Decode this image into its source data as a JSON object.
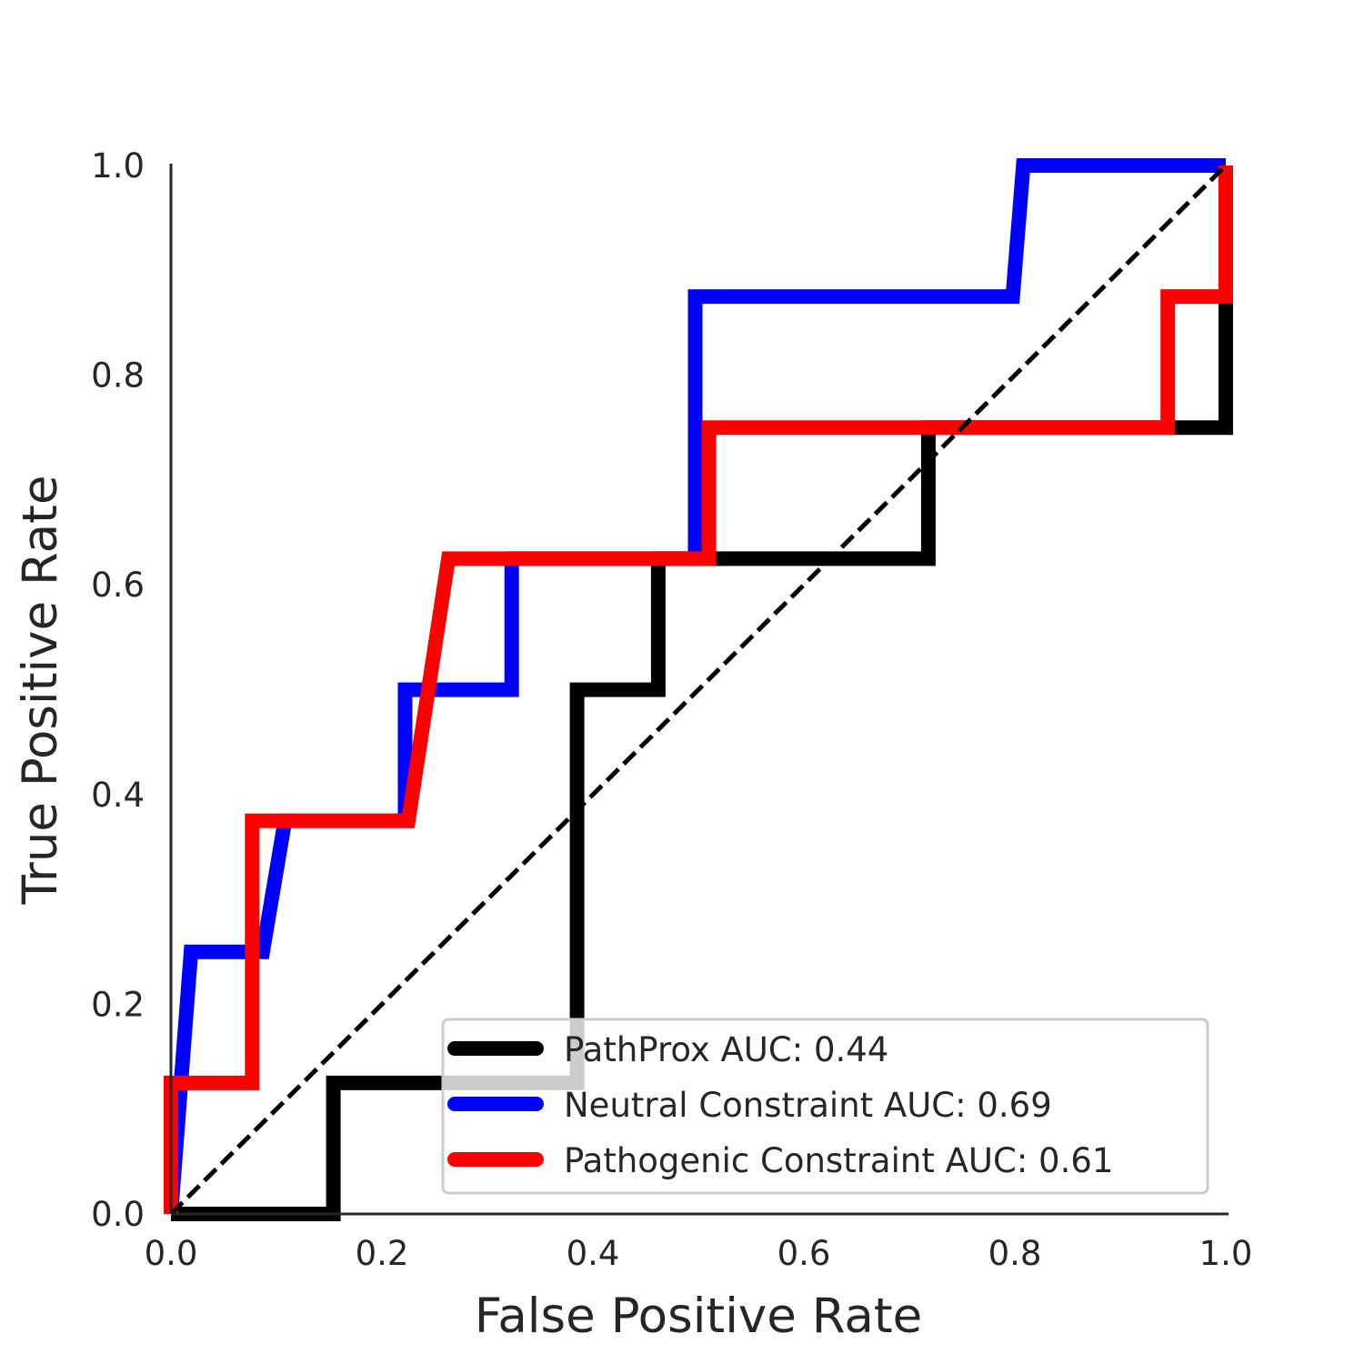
{
  "chart_data": {
    "type": "line",
    "title": "",
    "xlabel": "False Positive Rate",
    "ylabel": "True Positive Rate",
    "xlim": [
      0.0,
      1.0
    ],
    "ylim": [
      0.0,
      1.0
    ],
    "xticks": [
      "0.0",
      "0.2",
      "0.4",
      "0.6",
      "0.8",
      "1.0"
    ],
    "yticks": [
      "0.0",
      "0.2",
      "0.4",
      "0.6",
      "0.8",
      "1.0"
    ],
    "grid": false,
    "legend_position": "lower right",
    "series": [
      {
        "name": "PathProx AUC:  0.44",
        "color": "#000000",
        "x": [
          0.0,
          0.154,
          0.154,
          0.385,
          0.385,
          0.462,
          0.462,
          0.718,
          0.718,
          1.0,
          1.0,
          1.0
        ],
        "y": [
          0.0,
          0.0,
          0.125,
          0.125,
          0.5,
          0.5,
          0.625,
          0.625,
          0.75,
          0.75,
          0.875,
          1.0
        ]
      },
      {
        "name": "Neutral Constraint AUC:  0.69",
        "color": "#0000ff",
        "x": [
          0.0,
          0.019,
          0.087,
          0.108,
          0.222,
          0.222,
          0.323,
          0.323,
          0.497,
          0.497,
          0.798,
          0.808,
          1.0
        ],
        "y": [
          0.0,
          0.25,
          0.25,
          0.375,
          0.375,
          0.5,
          0.5,
          0.625,
          0.625,
          0.875,
          0.875,
          1.0,
          1.0
        ]
      },
      {
        "name": "Pathogenic Constraint AUC:  0.61",
        "color": "#ff0000",
        "x": [
          0.0,
          0.0,
          0.077,
          0.077,
          0.225,
          0.263,
          0.51,
          0.51,
          0.945,
          0.945,
          1.0,
          1.0
        ],
        "y": [
          0.0,
          0.125,
          0.125,
          0.375,
          0.375,
          0.625,
          0.625,
          0.75,
          0.75,
          0.875,
          0.875,
          1.0
        ]
      }
    ],
    "reference_line": {
      "x": [
        0.0,
        1.0
      ],
      "y": [
        0.0,
        1.0
      ],
      "color": "#000000",
      "style": "dashed"
    }
  }
}
